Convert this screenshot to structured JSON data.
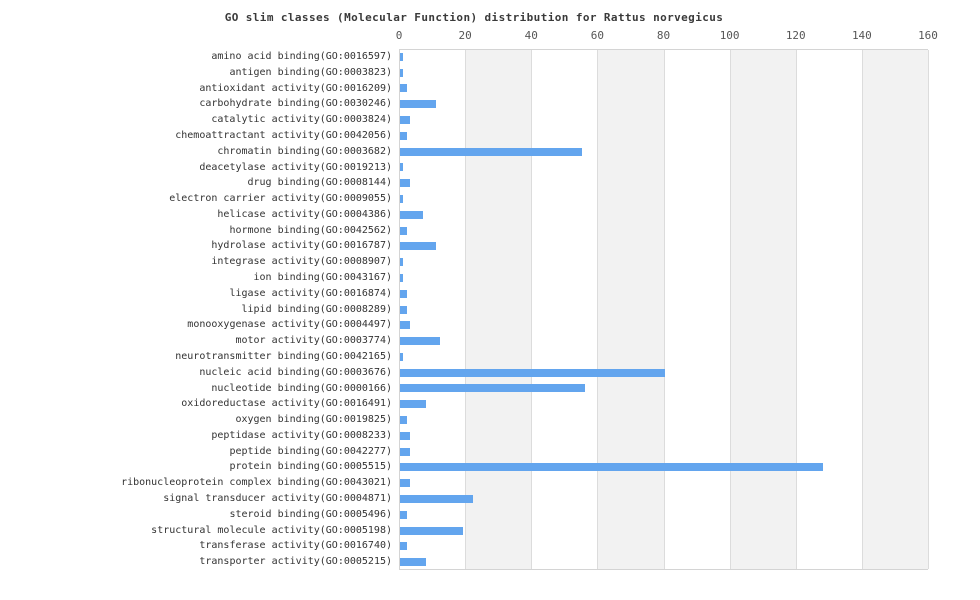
{
  "chart_data": {
    "type": "bar",
    "orientation": "horizontal",
    "title": "GO slim classes (Molecular Function) distribution for Rattus norvegicus",
    "xlabel": "",
    "ylabel": "",
    "xlim": [
      0,
      160
    ],
    "x_ticks": [
      0,
      20,
      40,
      60,
      80,
      100,
      120,
      140,
      160
    ],
    "x_axis_position": "top",
    "grid": "vertical lines every 20 with alternating background bands",
    "legend": "none",
    "categories": [
      "amino acid binding(GO:0016597)",
      "antigen binding(GO:0003823)",
      "antioxidant activity(GO:0016209)",
      "carbohydrate binding(GO:0030246)",
      "catalytic activity(GO:0003824)",
      "chemoattractant activity(GO:0042056)",
      "chromatin binding(GO:0003682)",
      "deacetylase activity(GO:0019213)",
      "drug binding(GO:0008144)",
      "electron carrier activity(GO:0009055)",
      "helicase activity(GO:0004386)",
      "hormone binding(GO:0042562)",
      "hydrolase activity(GO:0016787)",
      "integrase activity(GO:0008907)",
      "ion binding(GO:0043167)",
      "ligase activity(GO:0016874)",
      "lipid binding(GO:0008289)",
      "monooxygenase activity(GO:0004497)",
      "motor activity(GO:0003774)",
      "neurotransmitter binding(GO:0042165)",
      "nucleic acid binding(GO:0003676)",
      "nucleotide binding(GO:0000166)",
      "oxidoreductase activity(GO:0016491)",
      "oxygen binding(GO:0019825)",
      "peptidase activity(GO:0008233)",
      "peptide binding(GO:0042277)",
      "protein binding(GO:0005515)",
      "ribonucleoprotein complex binding(GO:0043021)",
      "signal transducer activity(GO:0004871)",
      "steroid binding(GO:0005496)",
      "structural molecule activity(GO:0005198)",
      "transferase activity(GO:0016740)",
      "transporter activity(GO:0005215)"
    ],
    "values": [
      1,
      1,
      2,
      11,
      3,
      2,
      55,
      1,
      3,
      1,
      7,
      2,
      11,
      1,
      1,
      2,
      2,
      3,
      12,
      1,
      80,
      56,
      8,
      2,
      3,
      3,
      128,
      3,
      22,
      2,
      19,
      2,
      8
    ],
    "colors": {
      "bar": "#63a5ee",
      "band_gray": "#f2f2f2",
      "gridline": "#dcdcdc",
      "plot_border": "#d4d4d4",
      "tick_text": "#565656",
      "label_text": "#333333",
      "title_text": "#3a3a3a"
    }
  }
}
